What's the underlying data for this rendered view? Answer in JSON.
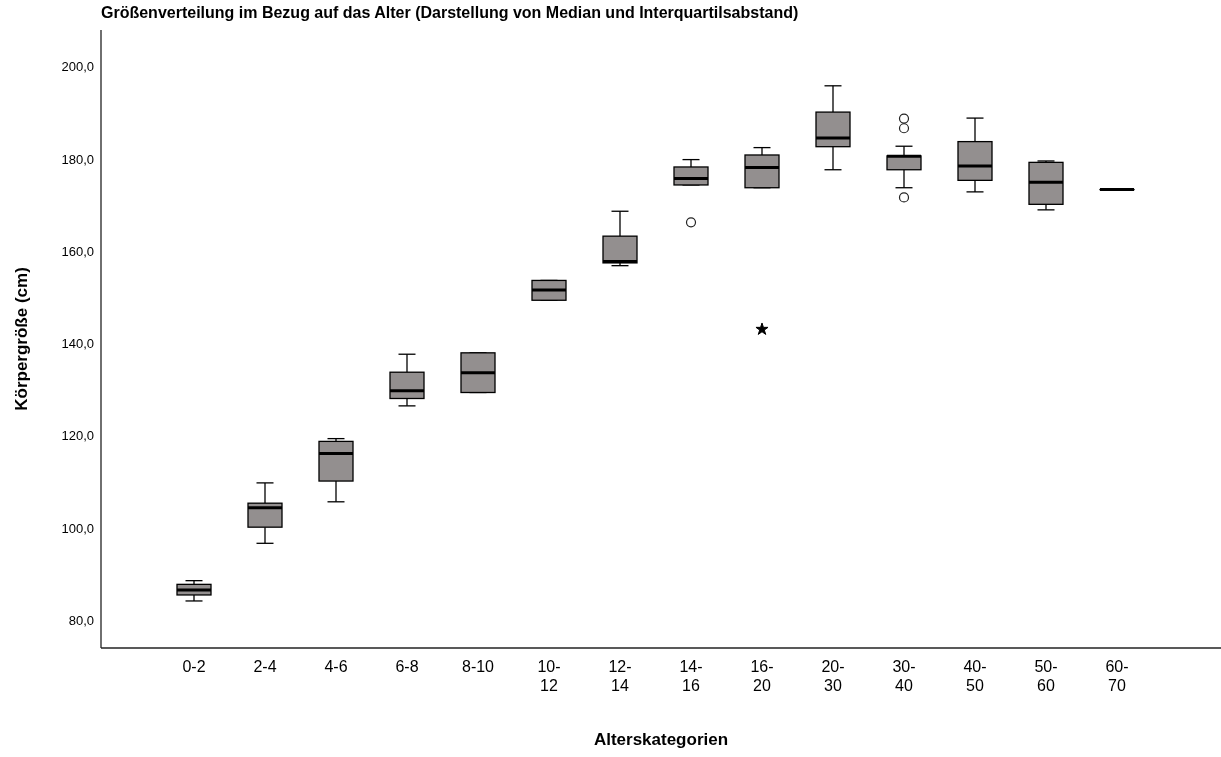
{
  "chart_data": {
    "type": "box",
    "title": "Größenverteilung im Bezug auf das Alter (Darstellung von Median und Interquartilsabstand)",
    "xlabel": "Alterskategorien",
    "ylabel": "Körpergröße (cm)",
    "categories": [
      "0-2",
      "2-4",
      "4-6",
      "6-8",
      "8-10",
      "10-12",
      "12-14",
      "14-16",
      "16-20",
      "20-30",
      "30-40",
      "40-50",
      "50-60",
      "60-70"
    ],
    "ylim": [
      74,
      208
    ],
    "yticks": [
      {
        "value": 80,
        "label": "80,0"
      },
      {
        "value": 100,
        "label": "100,0"
      },
      {
        "value": 120,
        "label": "120,0"
      },
      {
        "value": 140,
        "label": "140,0"
      },
      {
        "value": 160,
        "label": "160,0"
      },
      {
        "value": 180,
        "label": "180,0"
      },
      {
        "value": 200,
        "label": "200,0"
      }
    ],
    "series": [
      {
        "color": "#938f8f",
        "boxes": [
          {
            "low": 84.2,
            "q1": 85.5,
            "median": 86.6,
            "q3": 87.8,
            "high": 88.6
          },
          {
            "low": 96.7,
            "q1": 100.2,
            "median": 104.4,
            "q3": 105.4,
            "high": 109.8
          },
          {
            "low": 105.7,
            "q1": 110.2,
            "median": 116.2,
            "q3": 118.8,
            "high": 119.4
          },
          {
            "low": 126.5,
            "q1": 128.1,
            "median": 129.8,
            "q3": 133.8,
            "high": 137.7
          },
          {
            "low": 129.4,
            "q1": 129.4,
            "median": 133.7,
            "q3": 138.0,
            "high": 138.0
          },
          {
            "low": 149.4,
            "q1": 149.4,
            "median": 151.6,
            "q3": 153.7,
            "high": 153.7
          },
          {
            "low": 156.9,
            "q1": 157.5,
            "median": 157.8,
            "q3": 163.3,
            "high": 168.7
          },
          {
            "low": 174.4,
            "q1": 174.4,
            "median": 175.8,
            "q3": 178.3,
            "high": 179.9,
            "outliers": [
              166.3
            ]
          },
          {
            "low": 173.8,
            "q1": 173.8,
            "median": 178.2,
            "q3": 180.9,
            "high": 182.5
          },
          {
            "low": 177.7,
            "q1": 182.7,
            "median": 184.6,
            "q3": 190.2,
            "high": 195.9
          },
          {
            "low": 173.8,
            "q1": 177.7,
            "median": 180.6,
            "q3": 180.7,
            "high": 182.8,
            "outliers": [
              188.8,
              186.7,
              171.7
            ]
          },
          {
            "low": 172.9,
            "q1": 175.4,
            "median": 178.5,
            "q3": 183.8,
            "high": 188.9
          },
          {
            "low": 169.0,
            "q1": 170.2,
            "median": 175.0,
            "q3": 179.3,
            "high": 179.6
          },
          {
            "low": 173.4,
            "q1": 173.4,
            "median": 173.4,
            "q3": 173.4,
            "high": 173.4
          }
        ]
      },
      {
        "type": "scatter",
        "color": "#000000",
        "marker": "star",
        "x": [
          "16-20"
        ],
        "values": [
          143.1
        ]
      }
    ]
  }
}
